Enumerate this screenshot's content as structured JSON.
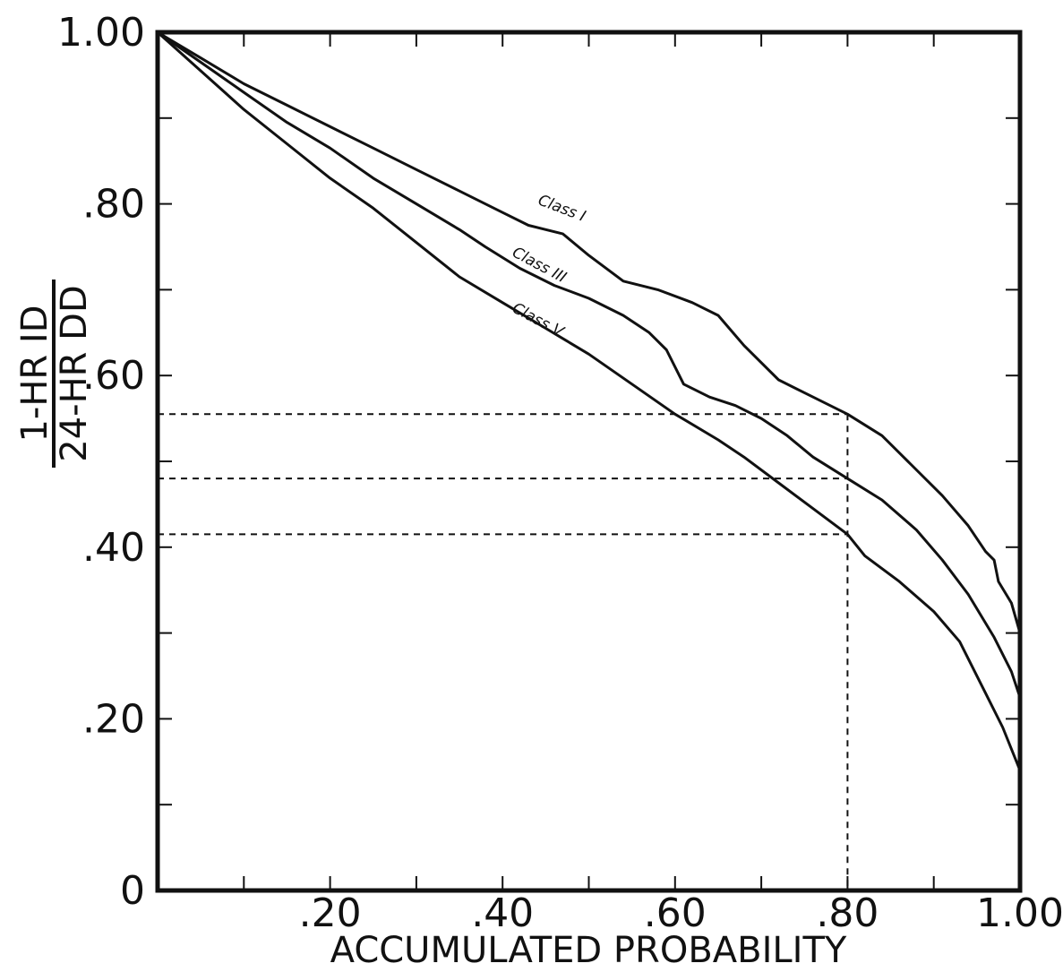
{
  "chart_data": {
    "type": "line",
    "xlabel": "ACCUMULATED PROBABILITY",
    "ylabel": {
      "numerator": "1-HR ID",
      "denominator": "24-HR DD"
    },
    "xlim": [
      0,
      1
    ],
    "ylim": [
      0,
      1
    ],
    "x_ticks": [
      0,
      0.1,
      0.2,
      0.3,
      0.4,
      0.5,
      0.6,
      0.7,
      0.8,
      0.9,
      1.0
    ],
    "y_ticks": [
      0,
      0.1,
      0.2,
      0.3,
      0.4,
      0.5,
      0.6,
      0.7,
      0.8,
      0.9,
      1.0
    ],
    "x_tick_labels": [
      {
        "value": 0.2,
        "text": ".20"
      },
      {
        "value": 0.4,
        "text": ".40"
      },
      {
        "value": 0.6,
        "text": ".60"
      },
      {
        "value": 0.8,
        "text": ".80"
      },
      {
        "value": 1.0,
        "text": "1.00"
      }
    ],
    "y_tick_labels": [
      {
        "value": 0,
        "text": "0"
      },
      {
        "value": 0.2,
        "text": ".20"
      },
      {
        "value": 0.4,
        "text": ".40"
      },
      {
        "value": 0.6,
        "text": ".60"
      },
      {
        "value": 0.8,
        "text": ".80"
      },
      {
        "value": 1.0,
        "text": "1.00"
      }
    ],
    "grid": false,
    "series": [
      {
        "name": "Class I",
        "label_anchor": [
          0.44,
          0.8
        ],
        "label_angle": 21,
        "points": [
          [
            0,
            1.0
          ],
          [
            0.05,
            0.97
          ],
          [
            0.1,
            0.94
          ],
          [
            0.15,
            0.915
          ],
          [
            0.2,
            0.89
          ],
          [
            0.25,
            0.865
          ],
          [
            0.3,
            0.84
          ],
          [
            0.35,
            0.815
          ],
          [
            0.4,
            0.79
          ],
          [
            0.43,
            0.775
          ],
          [
            0.47,
            0.765
          ],
          [
            0.5,
            0.74
          ],
          [
            0.54,
            0.71
          ],
          [
            0.58,
            0.7
          ],
          [
            0.62,
            0.685
          ],
          [
            0.65,
            0.67
          ],
          [
            0.68,
            0.635
          ],
          [
            0.72,
            0.595
          ],
          [
            0.76,
            0.575
          ],
          [
            0.8,
            0.555
          ],
          [
            0.84,
            0.53
          ],
          [
            0.87,
            0.5
          ],
          [
            0.91,
            0.46
          ],
          [
            0.94,
            0.425
          ],
          [
            0.96,
            0.395
          ],
          [
            0.97,
            0.385
          ],
          [
            0.975,
            0.36
          ],
          [
            0.99,
            0.335
          ],
          [
            1.0,
            0.3
          ]
        ]
      },
      {
        "name": "Class III",
        "label_anchor": [
          0.41,
          0.74
        ],
        "label_angle": 28,
        "points": [
          [
            0,
            1.0
          ],
          [
            0.05,
            0.965
          ],
          [
            0.1,
            0.93
          ],
          [
            0.15,
            0.895
          ],
          [
            0.2,
            0.865
          ],
          [
            0.25,
            0.83
          ],
          [
            0.3,
            0.8
          ],
          [
            0.35,
            0.77
          ],
          [
            0.38,
            0.75
          ],
          [
            0.42,
            0.725
          ],
          [
            0.46,
            0.705
          ],
          [
            0.5,
            0.69
          ],
          [
            0.54,
            0.67
          ],
          [
            0.57,
            0.65
          ],
          [
            0.59,
            0.63
          ],
          [
            0.61,
            0.59
          ],
          [
            0.64,
            0.575
          ],
          [
            0.67,
            0.565
          ],
          [
            0.7,
            0.55
          ],
          [
            0.73,
            0.53
          ],
          [
            0.76,
            0.505
          ],
          [
            0.8,
            0.48
          ],
          [
            0.84,
            0.455
          ],
          [
            0.88,
            0.42
          ],
          [
            0.91,
            0.385
          ],
          [
            0.94,
            0.345
          ],
          [
            0.97,
            0.295
          ],
          [
            0.99,
            0.255
          ],
          [
            1.0,
            0.225
          ]
        ]
      },
      {
        "name": "Class V",
        "label_anchor": [
          0.41,
          0.675
        ],
        "label_angle": 28,
        "points": [
          [
            0,
            1.0
          ],
          [
            0.05,
            0.955
          ],
          [
            0.1,
            0.91
          ],
          [
            0.15,
            0.87
          ],
          [
            0.2,
            0.83
          ],
          [
            0.25,
            0.795
          ],
          [
            0.3,
            0.755
          ],
          [
            0.35,
            0.715
          ],
          [
            0.4,
            0.685
          ],
          [
            0.45,
            0.655
          ],
          [
            0.5,
            0.625
          ],
          [
            0.55,
            0.59
          ],
          [
            0.6,
            0.555
          ],
          [
            0.65,
            0.525
          ],
          [
            0.68,
            0.505
          ],
          [
            0.72,
            0.475
          ],
          [
            0.76,
            0.445
          ],
          [
            0.8,
            0.415
          ],
          [
            0.82,
            0.39
          ],
          [
            0.86,
            0.36
          ],
          [
            0.9,
            0.325
          ],
          [
            0.93,
            0.29
          ],
          [
            0.96,
            0.23
          ],
          [
            0.98,
            0.19
          ],
          [
            1.0,
            0.14
          ]
        ]
      }
    ],
    "reference_lines": {
      "x": 0.8,
      "y_levels": [
        0.555,
        0.48,
        0.415
      ],
      "style": "dashed"
    }
  }
}
